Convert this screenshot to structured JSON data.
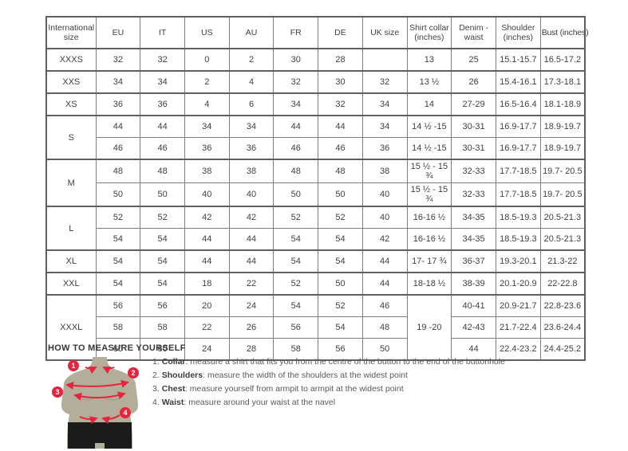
{
  "table": {
    "headers": [
      "International size",
      "EU",
      "IT",
      "US",
      "AU",
      "FR",
      "DE",
      "UK size",
      "Shirt collar (inches)",
      "Denim - waist",
      "Shoulder (inches)",
      "Bust (inches)"
    ],
    "groups": [
      {
        "size": "XXXS",
        "rows": [
          [
            "32",
            "32",
            "0",
            "2",
            "30",
            "28",
            "",
            "13",
            "25",
            "15.1-15.7",
            "16.5-17.2"
          ]
        ]
      },
      {
        "size": "XXS",
        "rows": [
          [
            "34",
            "34",
            "2",
            "4",
            "32",
            "30",
            "32",
            "13 ½",
            "26",
            "15.4-16.1",
            "17.3-18.1"
          ]
        ]
      },
      {
        "size": "XS",
        "rows": [
          [
            "36",
            "36",
            "4",
            "6",
            "34",
            "32",
            "34",
            "14",
            "27-29",
            "16.5-16.4",
            "18.1-18.9"
          ]
        ]
      },
      {
        "size": "S",
        "rows": [
          [
            "44",
            "44",
            "34",
            "34",
            "44",
            "44",
            "34",
            "14 ½ -15",
            "30-31",
            "16.9-17.7",
            "18.9-19.7"
          ],
          [
            "46",
            "46",
            "36",
            "36",
            "46",
            "46",
            "36",
            "14 ½ -15",
            "30-31",
            "16.9-17.7",
            "18.9-19.7"
          ]
        ]
      },
      {
        "size": "M",
        "rows": [
          [
            "48",
            "48",
            "38",
            "38",
            "48",
            "48",
            "38",
            "15 ½ - 15 ¾",
            "32-33",
            "17.7-18.5",
            "19.7- 20.5"
          ],
          [
            "50",
            "50",
            "40",
            "40",
            "50",
            "50",
            "40",
            "15 ½ - 15 ¾",
            "32-33",
            "17.7-18.5",
            "19.7- 20.5"
          ]
        ]
      },
      {
        "size": "L",
        "rows": [
          [
            "52",
            "52",
            "42",
            "42",
            "52",
            "52",
            "40",
            "16-16 ½",
            "34-35",
            "18.5-19.3",
            "20.5-21.3"
          ],
          [
            "54",
            "54",
            "44",
            "44",
            "54",
            "54",
            "42",
            "16-16 ½",
            "34-35",
            "18.5-19.3",
            "20.5-21.3"
          ]
        ]
      },
      {
        "size": "XL",
        "rows": [
          [
            "54",
            "54",
            "44",
            "44",
            "54",
            "54",
            "44",
            "17- 17 ¾",
            "36-37",
            "19.3-20.1",
            "21.3-22"
          ]
        ]
      },
      {
        "size": "XXL",
        "rows": [
          [
            "54",
            "54",
            "18",
            "22",
            "52",
            "50",
            "44",
            "18-18 ½",
            "38-39",
            "20.1-20.9",
            "22-22.8"
          ]
        ]
      },
      {
        "size": "XXXL",
        "rows": [
          [
            "56",
            "56",
            "20",
            "24",
            "54",
            "52",
            "46",
            {
              "v": "19 -20",
              "rowspan": 3
            },
            "40-41",
            "20.9-21.7",
            "22.8-23.6"
          ],
          [
            "58",
            "58",
            "22",
            "26",
            "56",
            "54",
            "48",
            null,
            "42-43",
            "21.7-22.4",
            "23.6-24.4"
          ],
          [
            "60",
            "60",
            "24",
            "28",
            "58",
            "56",
            "50",
            null,
            "44",
            "22.4-23.2",
            "24.4-25.2"
          ]
        ]
      }
    ]
  },
  "measure": {
    "title": "HOW TO MEASURE YOURSELF",
    "items": [
      {
        "num": "1.",
        "label": "Collar",
        "text": ": measure a shirt that fits you from the centre of the button to the end of the buttonhole"
      },
      {
        "num": "2.",
        "label": "Shoulders",
        "text": ": measure the width of the shoulders at the widest point"
      },
      {
        "num": "3.",
        "label": "Chest",
        "text": ": measure yourself from armpit to armpit at the widest point"
      },
      {
        "num": "4.",
        "label": "Waist",
        "text": ": measure around your waist at the navel"
      }
    ],
    "badges": [
      "1",
      "2",
      "3",
      "4"
    ]
  },
  "colors": {
    "accent_red": "#e8233d",
    "torso": "#b3ae99",
    "shorts": "#1b1b1b"
  }
}
